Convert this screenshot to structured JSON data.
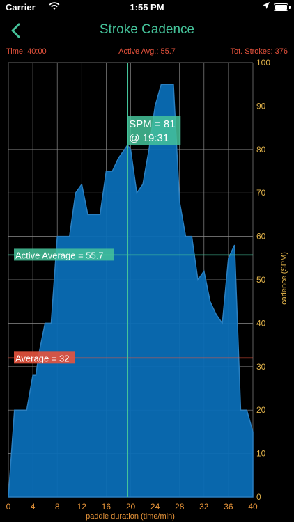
{
  "status_bar": {
    "carrier": "Carrier",
    "time": "1:55 PM"
  },
  "nav": {
    "title": "Stroke Cadence",
    "back_icon": "chevron-left-icon"
  },
  "stats": {
    "time": "Time: 40:00",
    "active_avg": "Active Avg.: 55.7",
    "total_strokes": "Tot. Strokes: 376"
  },
  "colors": {
    "accent": "#45c39a",
    "stat_text": "#e8533d",
    "area_fill": "#0a6db5",
    "area_stroke": "#2a7fc0",
    "average_line": "#e8533d",
    "active_line": "#45c39a",
    "axis_text": "#e8953a",
    "y_label": "#e0b24a"
  },
  "chart_data": {
    "type": "area",
    "xlabel": "paddle duration (time/min)",
    "ylabel": "cadence (SPM)",
    "xlim": [
      0,
      40
    ],
    "ylim": [
      0,
      100
    ],
    "x_ticks": [
      0,
      4,
      8,
      12,
      16,
      20,
      24,
      28,
      32,
      36,
      40
    ],
    "y_ticks": [
      0,
      10,
      20,
      30,
      40,
      50,
      60,
      70,
      80,
      90,
      100
    ],
    "grid": true,
    "x": [
      0,
      1,
      2,
      3,
      4,
      4.5,
      5,
      6,
      7,
      8,
      9,
      10,
      11,
      12,
      13,
      14,
      15,
      16,
      17,
      18,
      19,
      19.5,
      20,
      21,
      22,
      23,
      24,
      25,
      26,
      27,
      28,
      29,
      30,
      31,
      32,
      33,
      34,
      35,
      36,
      37,
      38,
      39,
      40
    ],
    "values": [
      0,
      20,
      20,
      20,
      28,
      28,
      33,
      40,
      40,
      60,
      60,
      60,
      70,
      72,
      65,
      65,
      65,
      75,
      75,
      78,
      80,
      81,
      80,
      70,
      72,
      80,
      90,
      95,
      95,
      95,
      68,
      60,
      60,
      50,
      52,
      45,
      42,
      40,
      55,
      58,
      20,
      20,
      15
    ],
    "reference_lines": [
      {
        "label": "Active Average = 55.7",
        "value": 55.7
      },
      {
        "label": "Average = 32",
        "value": 32
      }
    ],
    "cursor": {
      "x_min": 19.52,
      "label_line1": "SPM = 81",
      "label_line2": "@ 19:31"
    }
  }
}
